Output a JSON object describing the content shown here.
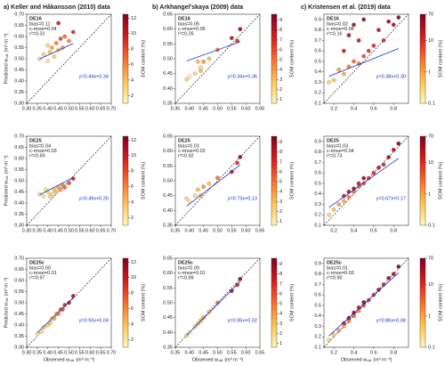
{
  "colormap": [
    "#fff7bc",
    "#fec44f",
    "#fb6a2c",
    "#d7191c",
    "#7f0020"
  ],
  "chart_data": [
    {
      "type": "scatter",
      "title": "a) Keller and Håkansson (2010) data",
      "label": "DE16",
      "stats": [
        "bias=0.11",
        "c-rmse=0.04",
        "r²=0.31"
      ],
      "fit": {
        "slope": 0.44,
        "intercept": 0.34
      },
      "fit_label": "y=0.44x+0.34",
      "ylabel": "Predicted wₛₐₜ (m³ m⁻³)",
      "colorbar_label": "SOM content (%)",
      "x": [
        0.36,
        0.38,
        0.4,
        0.41,
        0.42,
        0.43,
        0.44,
        0.45,
        0.46,
        0.47,
        0.48,
        0.5,
        0.52,
        0.45,
        0.4
      ],
      "y": [
        0.5,
        0.52,
        0.49,
        0.53,
        0.55,
        0.51,
        0.57,
        0.54,
        0.59,
        0.55,
        0.6,
        0.58,
        0.62,
        0.66,
        0.56
      ],
      "c": [
        2,
        3,
        2,
        4,
        5,
        3,
        6,
        4,
        8,
        5,
        7,
        6,
        9,
        10,
        3
      ],
      "xlim": [
        0.3,
        0.7
      ],
      "ylim": [
        0.3,
        0.7
      ],
      "xticks": [
        {
          "value": 0.3,
          "label": "0.30"
        },
        0.35,
        {
          "value": 0.4,
          "label": "0.40"
        },
        0.45,
        {
          "value": 0.5,
          "label": "0.50"
        },
        0.55,
        {
          "value": 0.6,
          "label": "0.60"
        },
        0.65,
        {
          "value": 0.7,
          "label": "0.70"
        }
      ],
      "yticks": [
        {
          "value": 0.3,
          "label": "0.30"
        },
        0.35,
        {
          "value": 0.4,
          "label": "0.40"
        },
        0.45,
        {
          "value": 0.5,
          "label": "0.50"
        },
        0.55,
        {
          "value": 0.6,
          "label": "0.60"
        },
        0.65,
        {
          "value": 0.7,
          "label": "0.70"
        }
      ],
      "clim": [
        1,
        12.5
      ],
      "cticks": [
        2,
        4,
        6,
        8,
        10,
        12
      ],
      "clog": false
    },
    {
      "type": "scatter",
      "title": "b) Arkhangel'skaya (2009) data",
      "label": "DE16",
      "stats": [
        "bias=0.05",
        "c-rmse=0.05",
        "r²=0.26"
      ],
      "fit": {
        "slope": 0.34,
        "intercept": 0.36
      },
      "fit_label": "y=0.34x+0.36",
      "colorbar_label": "SOM content (%)",
      "x": [
        0.39,
        0.4,
        0.42,
        0.43,
        0.44,
        0.45,
        0.47,
        0.5,
        0.55,
        0.57,
        0.58,
        0.44
      ],
      "y": [
        0.43,
        0.44,
        0.45,
        0.49,
        0.46,
        0.49,
        0.5,
        0.53,
        0.57,
        0.56,
        0.6,
        0.47
      ],
      "c": [
        2,
        1,
        2,
        3,
        3,
        4,
        3,
        5,
        8,
        7,
        9,
        2
      ],
      "xlim": [
        0.35,
        0.65
      ],
      "ylim": [
        0.35,
        0.65
      ],
      "xticks": [
        0.35,
        {
          "value": 0.4,
          "label": "0.40"
        },
        0.45,
        {
          "value": 0.5,
          "label": "0.50"
        },
        0.55,
        {
          "value": 0.6,
          "label": "0.60"
        },
        0.65
      ],
      "yticks": [
        0.35,
        {
          "value": 0.4,
          "label": "0.40"
        },
        0.45,
        {
          "value": 0.5,
          "label": "0.50"
        },
        0.55,
        {
          "value": 0.6,
          "label": "0.60"
        },
        0.65
      ],
      "clim": [
        0.6,
        9.6
      ],
      "cticks": [
        1,
        2,
        3,
        4,
        5,
        6,
        7,
        8,
        9
      ],
      "clog": false
    },
    {
      "type": "scatter",
      "title": "c) Kristensen et al. (2019) data",
      "label": "DE16",
      "stats": [
        "bias=0.02",
        "c-rmse=0.08",
        "r²=0.16"
      ],
      "fit": {
        "slope": 0.38,
        "intercept": 0.3
      },
      "fit_label": "y=0.38x+0.30",
      "colorbar_label": "SOM content (%)",
      "x": [
        0.15,
        0.2,
        0.25,
        0.3,
        0.3,
        0.35,
        0.35,
        0.4,
        0.4,
        0.45,
        0.45,
        0.5,
        0.5,
        0.55,
        0.6,
        0.65,
        0.7,
        0.75,
        0.8,
        0.85
      ],
      "y": [
        0.3,
        0.32,
        0.42,
        0.38,
        0.6,
        0.45,
        0.75,
        0.5,
        0.85,
        0.48,
        0.7,
        0.55,
        0.9,
        0.6,
        0.65,
        0.8,
        0.7,
        0.88,
        0.85,
        0.92
      ],
      "c": [
        0.3,
        0.5,
        1,
        0.8,
        15,
        2,
        30,
        3,
        40,
        2,
        20,
        5,
        50,
        8,
        10,
        25,
        12,
        40,
        30,
        60
      ],
      "xlim": [
        0.1,
        0.95
      ],
      "ylim": [
        0.1,
        0.95
      ],
      "xticks": [
        0.2,
        0.4,
        0.6,
        0.8
      ],
      "yticks": [
        0.1,
        0.2,
        0.3,
        0.4,
        0.5,
        0.6,
        0.7,
        0.8,
        0.9
      ],
      "clim": [
        0.1,
        70
      ],
      "cticks": [
        0.1,
        1,
        10,
        70
      ],
      "clog": true
    },
    {
      "type": "scatter",
      "label": "DE25",
      "stats": [
        "bias=0.04",
        "c-rmse=0.03",
        "r²=0.69"
      ],
      "fit": {
        "slope": 0.49,
        "intercept": 0.26
      },
      "fit_label": "y=0.49x+0.26",
      "ylabel": "Predicted wₛₐₜ (m³ m⁻³)",
      "colorbar_label": "SOM content (%)",
      "x": [
        0.36,
        0.38,
        0.4,
        0.42,
        0.43,
        0.44,
        0.45,
        0.46,
        0.47,
        0.48,
        0.5,
        0.52,
        0.41,
        0.39
      ],
      "y": [
        0.44,
        0.43,
        0.45,
        0.44,
        0.46,
        0.45,
        0.47,
        0.46,
        0.48,
        0.47,
        0.49,
        0.51,
        0.43,
        0.46
      ],
      "c": [
        2,
        2,
        3,
        3,
        4,
        4,
        5,
        5,
        6,
        7,
        8,
        10,
        3,
        2
      ],
      "xlim": [
        0.3,
        0.7
      ],
      "ylim": [
        0.3,
        0.7
      ],
      "xticks": [
        {
          "value": 0.3,
          "label": "0.30"
        },
        0.35,
        {
          "value": 0.4,
          "label": "0.40"
        },
        0.45,
        {
          "value": 0.5,
          "label": "0.50"
        },
        0.55,
        {
          "value": 0.6,
          "label": "0.60"
        },
        0.65,
        {
          "value": 0.7,
          "label": "0.70"
        }
      ],
      "yticks": [
        {
          "value": 0.3,
          "label": "0.30"
        },
        0.35,
        {
          "value": 0.4,
          "label": "0.40"
        },
        0.45,
        {
          "value": 0.5,
          "label": "0.50"
        },
        0.55,
        {
          "value": 0.6,
          "label": "0.60"
        },
        0.65,
        {
          "value": 0.7,
          "label": "0.70"
        }
      ],
      "clim": [
        1,
        12.5
      ],
      "cticks": [
        2,
        4,
        6,
        8,
        10,
        12
      ],
      "clog": false
    },
    {
      "type": "scatter",
      "label": "DE25",
      "stats": [
        "bias=0.01",
        "c-rmse=0.02",
        "r²=0.92"
      ],
      "fit": {
        "slope": 0.73,
        "intercept": 0.13
      },
      "fit_label": "y=0.73x+0.13",
      "colorbar_label": "SOM content (%)",
      "x": [
        0.39,
        0.4,
        0.42,
        0.43,
        0.44,
        0.45,
        0.47,
        0.5,
        0.55,
        0.57,
        0.58
      ],
      "y": [
        0.44,
        0.43,
        0.45,
        0.47,
        0.45,
        0.48,
        0.49,
        0.51,
        0.53,
        0.56,
        0.58
      ],
      "c": [
        2,
        1,
        2,
        3,
        3,
        4,
        3,
        5,
        8,
        7,
        9
      ],
      "xlim": [
        0.35,
        0.65
      ],
      "ylim": [
        0.35,
        0.65
      ],
      "xticks": [
        0.35,
        {
          "value": 0.4,
          "label": "0.40"
        },
        0.45,
        {
          "value": 0.5,
          "label": "0.50"
        },
        0.55,
        {
          "value": 0.6,
          "label": "0.60"
        },
        0.65
      ],
      "yticks": [
        0.35,
        {
          "value": 0.4,
          "label": "0.40"
        },
        0.45,
        {
          "value": 0.5,
          "label": "0.50"
        },
        0.55,
        {
          "value": 0.6,
          "label": "0.60"
        },
        0.65
      ],
      "clim": [
        0.6,
        9.6
      ],
      "cticks": [
        1,
        2,
        3,
        4,
        5,
        6,
        7,
        8,
        9
      ],
      "clog": false
    },
    {
      "type": "scatter",
      "label": "DE25",
      "stats": [
        "bias=0.03",
        "c-rmse=0.04",
        "r²=0.73"
      ],
      "fit": {
        "slope": 0.67,
        "intercept": 0.17
      },
      "fit_label": "y=0.67x+0.17",
      "colorbar_label": "SOM content (%)",
      "x": [
        0.15,
        0.2,
        0.25,
        0.3,
        0.3,
        0.35,
        0.35,
        0.4,
        0.4,
        0.45,
        0.45,
        0.5,
        0.5,
        0.55,
        0.6,
        0.65,
        0.7,
        0.75,
        0.8,
        0.85
      ],
      "y": [
        0.2,
        0.25,
        0.3,
        0.33,
        0.38,
        0.37,
        0.42,
        0.42,
        0.45,
        0.47,
        0.5,
        0.5,
        0.55,
        0.55,
        0.6,
        0.65,
        0.68,
        0.75,
        0.82,
        0.88
      ],
      "c": [
        0.3,
        0.5,
        1,
        0.8,
        15,
        2,
        30,
        3,
        40,
        2,
        20,
        5,
        50,
        8,
        10,
        25,
        12,
        40,
        30,
        60
      ],
      "xlim": [
        0.1,
        0.95
      ],
      "ylim": [
        0.1,
        0.95
      ],
      "xticks": [
        0.2,
        0.4,
        0.6,
        0.8
      ],
      "yticks": [
        0.1,
        0.2,
        0.3,
        0.4,
        0.5,
        0.6,
        0.7,
        0.8,
        0.9
      ],
      "clim": [
        0.1,
        70
      ],
      "cticks": [
        0.1,
        1,
        10,
        70
      ],
      "clog": true
    },
    {
      "type": "scatter",
      "label": "DE25c",
      "stats": [
        "bias=0.00",
        "c-rmse=0.01",
        "r²=0.97"
      ],
      "fit": {
        "slope": 0.93,
        "intercept": 0.04
      },
      "fit_label": "y=0.93x+0.04",
      "ylabel": "Predicted wₛₐₜ (m³ m⁻³)",
      "xlabel": "Observed wₛₐₜ (m³ m⁻³)",
      "colorbar_label": "SOM content (%)",
      "x": [
        0.35,
        0.37,
        0.38,
        0.4,
        0.41,
        0.42,
        0.43,
        0.44,
        0.45,
        0.46,
        0.47,
        0.48,
        0.5,
        0.52
      ],
      "y": [
        0.36,
        0.37,
        0.39,
        0.4,
        0.41,
        0.43,
        0.43,
        0.45,
        0.45,
        0.47,
        0.47,
        0.49,
        0.5,
        0.53
      ],
      "c": [
        2,
        2,
        3,
        3,
        4,
        4,
        5,
        5,
        6,
        7,
        8,
        9,
        10,
        11
      ],
      "xlim": [
        0.3,
        0.7
      ],
      "ylim": [
        0.3,
        0.7
      ],
      "xticks": [
        {
          "value": 0.3,
          "label": "0.30"
        },
        0.35,
        {
          "value": 0.4,
          "label": "0.40"
        },
        0.45,
        {
          "value": 0.5,
          "label": "0.50"
        },
        0.55,
        {
          "value": 0.6,
          "label": "0.60"
        },
        0.65,
        {
          "value": 0.7,
          "label": "0.70"
        }
      ],
      "yticks": [
        {
          "value": 0.3,
          "label": "0.30"
        },
        0.35,
        {
          "value": 0.4,
          "label": "0.40"
        },
        0.45,
        {
          "value": 0.5,
          "label": "0.50"
        },
        0.55,
        {
          "value": 0.6,
          "label": "0.60"
        },
        0.65,
        {
          "value": 0.7,
          "label": "0.70"
        }
      ],
      "clim": [
        1,
        12.5
      ],
      "cticks": [
        2,
        4,
        6,
        8,
        10,
        12
      ],
      "clog": false
    },
    {
      "type": "scatter",
      "label": "DE25c",
      "stats": [
        "bias=0.00",
        "c-rmse=0.01",
        "r²=0.99"
      ],
      "fit": {
        "slope": 0.95,
        "intercept": 0.02
      },
      "fit_label": "y=0.95x+0.02",
      "xlabel": "Observed wₛₐₜ (m³ m⁻³)",
      "colorbar_label": "SOM content (%)",
      "x": [
        0.39,
        0.4,
        0.42,
        0.43,
        0.44,
        0.45,
        0.47,
        0.5,
        0.55,
        0.57,
        0.58
      ],
      "y": [
        0.39,
        0.4,
        0.42,
        0.43,
        0.44,
        0.45,
        0.47,
        0.5,
        0.54,
        0.56,
        0.58
      ],
      "c": [
        2,
        1,
        2,
        3,
        3,
        4,
        3,
        5,
        8,
        7,
        9
      ],
      "xlim": [
        0.35,
        0.65
      ],
      "ylim": [
        0.35,
        0.65
      ],
      "xticks": [
        0.35,
        {
          "value": 0.4,
          "label": "0.40"
        },
        0.45,
        {
          "value": 0.5,
          "label": "0.50"
        },
        0.55,
        {
          "value": 0.6,
          "label": "0.60"
        },
        0.65
      ],
      "yticks": [
        0.35,
        {
          "value": 0.4,
          "label": "0.40"
        },
        0.45,
        {
          "value": 0.5,
          "label": "0.50"
        },
        0.55,
        {
          "value": 0.6,
          "label": "0.60"
        },
        0.65
      ],
      "clim": [
        0.6,
        9.6
      ],
      "cticks": [
        1,
        2,
        3,
        4,
        5,
        6,
        7,
        8,
        9
      ],
      "clog": false
    },
    {
      "type": "scatter",
      "label": "DE25c",
      "stats": [
        "bias=0.01",
        "c-rmse=0.03",
        "r²=0.90"
      ],
      "fit": {
        "slope": 0.86,
        "intercept": 0.08
      },
      "fit_label": "y=0.86x+0.08",
      "xlabel": "Observed wₛₐₜ (m³ m⁻³)",
      "colorbar_label": "SOM content (%)",
      "x": [
        0.15,
        0.2,
        0.25,
        0.3,
        0.3,
        0.35,
        0.35,
        0.4,
        0.4,
        0.45,
        0.45,
        0.5,
        0.5,
        0.55,
        0.6,
        0.65,
        0.7,
        0.75,
        0.8,
        0.85
      ],
      "y": [
        0.17,
        0.22,
        0.26,
        0.3,
        0.33,
        0.35,
        0.38,
        0.4,
        0.43,
        0.45,
        0.48,
        0.5,
        0.53,
        0.55,
        0.6,
        0.65,
        0.7,
        0.76,
        0.8,
        0.87
      ],
      "c": [
        0.3,
        0.5,
        1,
        0.8,
        15,
        2,
        30,
        3,
        40,
        2,
        20,
        5,
        50,
        8,
        10,
        25,
        12,
        40,
        30,
        60
      ],
      "xlim": [
        0.1,
        0.95
      ],
      "ylim": [
        0.1,
        0.95
      ],
      "xticks": [
        0.2,
        0.4,
        0.6,
        0.8
      ],
      "yticks": [
        0.1,
        0.2,
        0.3,
        0.4,
        0.5,
        0.6,
        0.7,
        0.8,
        0.9
      ],
      "clim": [
        0.1,
        70
      ],
      "cticks": [
        0.1,
        1,
        10,
        70
      ],
      "clog": true
    }
  ]
}
